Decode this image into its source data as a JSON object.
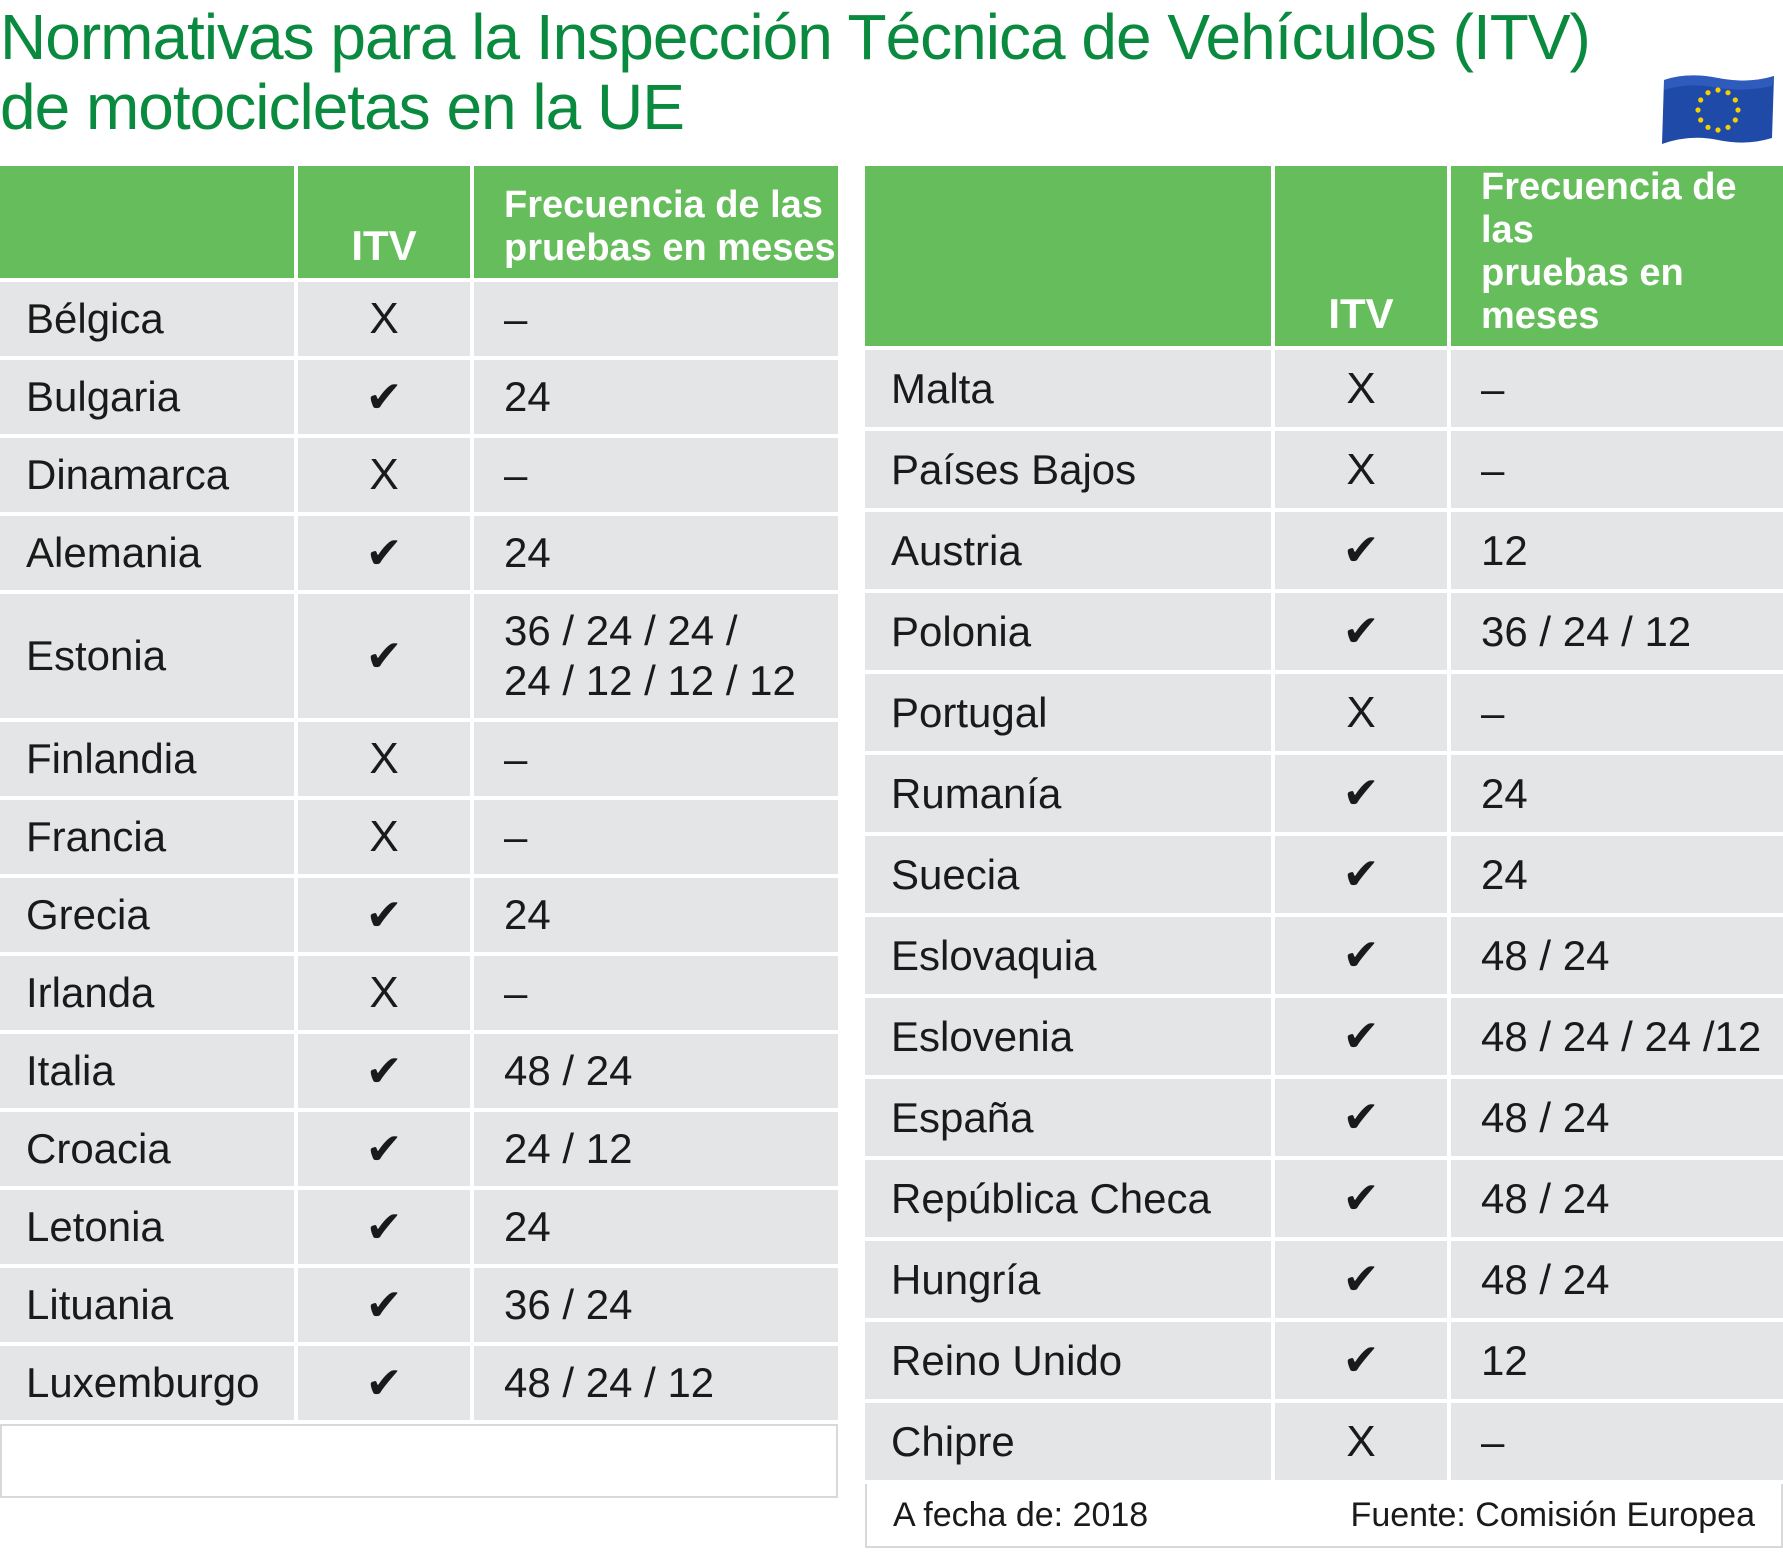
{
  "title": {
    "line1": "Normativas para la Inspección Técnica de Vehículos (ITV)",
    "line2": "de motocicletas en la UE"
  },
  "flag_icon": "eu-flag-icon",
  "colors": {
    "title": "#0a8a3e",
    "header_bg": "#66bd5c",
    "row_bg": "#e4e5e7",
    "flag_blue": "#1f4aa8",
    "flag_star": "#f5d000"
  },
  "table": {
    "headers": {
      "country": "",
      "itv": "ITV",
      "freq_line1": "Frecuencia de las",
      "freq_line2": "pruebas en meses"
    },
    "left_rows": [
      {
        "country": "Bélgica",
        "itv": "X",
        "freq": "–"
      },
      {
        "country": "Bulgaria",
        "itv": "✔",
        "freq": "24"
      },
      {
        "country": "Dinamarca",
        "itv": "X",
        "freq": "–"
      },
      {
        "country": "Alemania",
        "itv": "✔",
        "freq": "24"
      },
      {
        "country": "Estonia",
        "itv": "✔",
        "freq": "36 / 24 / 24 /",
        "freq2": "24 / 12 / 12 / 12"
      },
      {
        "country": "Finlandia",
        "itv": "X",
        "freq": "–"
      },
      {
        "country": "Francia",
        "itv": "X",
        "freq": "–"
      },
      {
        "country": "Grecia",
        "itv": "✔",
        "freq": "24"
      },
      {
        "country": "Irlanda",
        "itv": "X",
        "freq": "–"
      },
      {
        "country": "Italia",
        "itv": "✔",
        "freq": "48 / 24"
      },
      {
        "country": "Croacia",
        "itv": "✔",
        "freq": "24 / 12"
      },
      {
        "country": "Letonia",
        "itv": "✔",
        "freq": "24"
      },
      {
        "country": "Lituania",
        "itv": "✔",
        "freq": "36 / 24"
      },
      {
        "country": "Luxemburgo",
        "itv": "✔",
        "freq": "48 / 24 / 12"
      }
    ],
    "right_rows": [
      {
        "country": "Malta",
        "itv": "X",
        "freq": "–"
      },
      {
        "country": "Países Bajos",
        "itv": "X",
        "freq": "–"
      },
      {
        "country": "Austria",
        "itv": "✔",
        "freq": "12"
      },
      {
        "country": "Polonia",
        "itv": "✔",
        "freq": "36 / 24 / 12"
      },
      {
        "country": "Portugal",
        "itv": "X",
        "freq": "–"
      },
      {
        "country": "Rumanía",
        "itv": "✔",
        "freq": "24"
      },
      {
        "country": "Suecia",
        "itv": "✔",
        "freq": "24"
      },
      {
        "country": "Eslovaquia",
        "itv": "✔",
        "freq": "48 / 24"
      },
      {
        "country": "Eslovenia",
        "itv": "✔",
        "freq": "48 / 24 / 24 /12"
      },
      {
        "country": "España",
        "itv": "✔",
        "freq": "48 / 24"
      },
      {
        "country": "República Checa",
        "itv": "✔",
        "freq": "48 / 24"
      },
      {
        "country": "Hungría",
        "itv": "✔",
        "freq": "48 / 24"
      },
      {
        "country": "Reino Unido",
        "itv": "✔",
        "freq": "12"
      },
      {
        "country": "Chipre",
        "itv": "X",
        "freq": "–"
      }
    ]
  },
  "footer": {
    "date": "A fecha de: 2018",
    "source": "Fuente: Comisión Europea"
  }
}
